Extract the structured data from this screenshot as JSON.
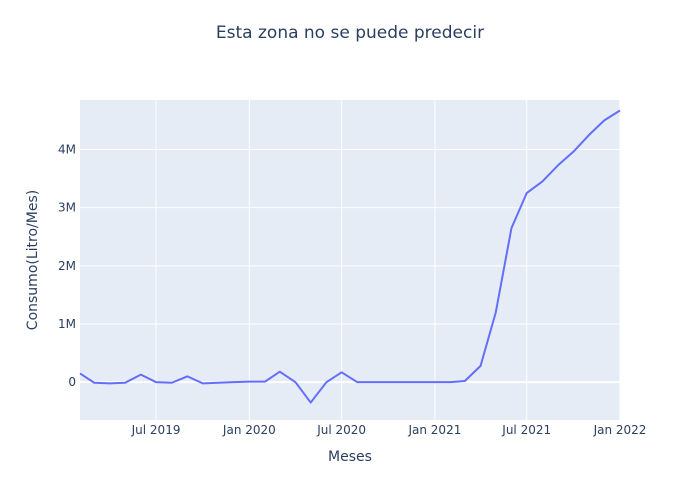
{
  "chart_data": {
    "type": "line",
    "title": "Esta zona no se puede predecir",
    "xlabel": "Meses",
    "ylabel": "Consumo(Litro/Mes)",
    "x_axis_type": "date",
    "xlim": [
      "2019-02-01",
      "2022-01-01"
    ],
    "ylim": [
      -650000,
      4850000
    ],
    "x_ticks": [
      {
        "date": "2019-07-01",
        "label": "Jul 2019"
      },
      {
        "date": "2020-01-01",
        "label": "Jan 2020"
      },
      {
        "date": "2020-07-01",
        "label": "Jul 2020"
      },
      {
        "date": "2021-01-01",
        "label": "Jan 2021"
      },
      {
        "date": "2021-07-01",
        "label": "Jul 2021"
      },
      {
        "date": "2022-01-01",
        "label": "Jan 2022"
      }
    ],
    "y_ticks": [
      {
        "value": 0,
        "label": "0"
      },
      {
        "value": 1000000,
        "label": "1M"
      },
      {
        "value": 2000000,
        "label": "2M"
      },
      {
        "value": 3000000,
        "label": "3M"
      },
      {
        "value": 4000000,
        "label": "4M"
      }
    ],
    "grid": true,
    "colors": {
      "line": "#636efa",
      "plot_bg": "#e5ecf6",
      "grid": "#ffffff",
      "text": "#2a3f5f"
    },
    "series": [
      {
        "x": [
          "2019-02-01",
          "2019-03-01",
          "2019-04-01",
          "2019-05-01",
          "2019-06-01",
          "2019-07-01",
          "2019-08-01",
          "2019-09-01",
          "2019-10-01",
          "2019-11-01",
          "2019-12-01",
          "2020-01-01",
          "2020-02-01",
          "2020-03-01",
          "2020-04-01",
          "2020-05-01",
          "2020-06-01",
          "2020-07-01",
          "2020-08-01",
          "2020-09-01",
          "2020-10-01",
          "2020-11-01",
          "2020-12-01",
          "2021-01-01",
          "2021-02-01",
          "2021-03-01",
          "2021-04-01",
          "2021-05-01",
          "2021-06-01",
          "2021-07-01",
          "2021-08-01",
          "2021-09-01",
          "2021-10-01",
          "2021-11-01",
          "2021-12-01",
          "2022-01-01"
        ],
        "y": [
          150000,
          -10000,
          -20000,
          -10000,
          130000,
          0,
          -10000,
          100000,
          -20000,
          -10000,
          0,
          10000,
          10000,
          180000,
          0,
          -350000,
          0,
          170000,
          0,
          0,
          0,
          0,
          0,
          0,
          0,
          20000,
          280000,
          1200000,
          2650000,
          3250000,
          3450000,
          3730000,
          3960000,
          4250000,
          4500000,
          4670000
        ]
      }
    ]
  }
}
